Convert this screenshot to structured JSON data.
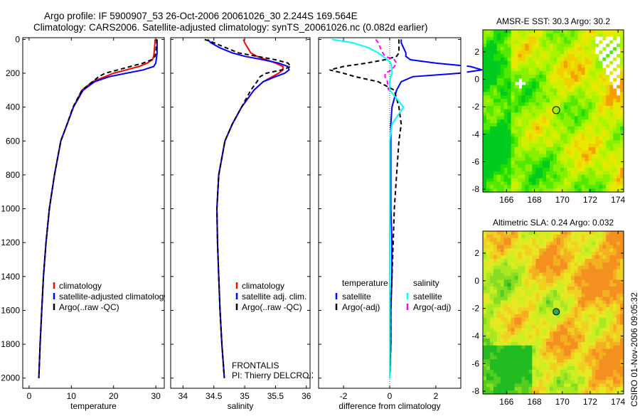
{
  "header": {
    "title_line1": "Argo profile: IF 5900907_53 26-Oct-2006 20061026_30 2.244S 169.564E",
    "title_line2": "Climatology: CARS2006. Satellite-adjusted climatology: synTS_20061026.nc (0.082d earlier)",
    "footer_stamp": "CSIRO 01-Nov-2006 09:05:32"
  },
  "colors": {
    "climatology": "#ff0000",
    "satellite": "#0000ff",
    "argo": "#000000",
    "sal_satellite": "#00ffff",
    "sal_argo": "#ff00ff"
  },
  "chart_data": [
    {
      "type": "line",
      "xlabel": "temperature",
      "xlim": [
        -1.5,
        32
      ],
      "ylim": [
        2060,
        -10
      ],
      "xticks": [
        0,
        10,
        20,
        30
      ],
      "yticks": [
        0,
        200,
        400,
        600,
        800,
        1000,
        1200,
        1400,
        1600,
        1800,
        2000
      ],
      "depth": [
        0,
        20,
        50,
        80,
        100,
        120,
        140,
        160,
        180,
        200,
        220,
        250,
        300,
        400,
        500,
        600,
        800,
        1000,
        1200,
        1400,
        1600,
        1800,
        2000
      ],
      "series": [
        {
          "name": "climatology",
          "color": "#ff0000",
          "dash": false,
          "values": [
            29.8,
            29.8,
            29.7,
            29.6,
            29.5,
            29.2,
            28,
            26,
            23,
            20,
            18,
            15,
            12.5,
            10.5,
            9,
            7.5,
            6,
            4.8,
            4,
            3.4,
            3,
            2.6,
            2.3
          ]
        },
        {
          "name": "satellite-adjusted climatology",
          "color": "#0000ff",
          "dash": false,
          "values": [
            30.3,
            30.3,
            30.3,
            30.3,
            30.2,
            30.1,
            30,
            29.5,
            27,
            23,
            19,
            15.5,
            12.8,
            10.5,
            9,
            7.5,
            6,
            4.8,
            4,
            3.4,
            3,
            2.6,
            2.3
          ]
        },
        {
          "name": "Argo(..raw -QC)",
          "color": "#000000",
          "dash": true,
          "values": [
            30.2,
            30.2,
            30.1,
            30,
            29.8,
            29,
            27,
            24,
            21,
            18,
            16.5,
            15,
            12.5,
            10.4,
            9,
            7.5,
            6,
            4.8,
            4,
            3.4,
            3,
            2.6,
            2.3
          ]
        }
      ],
      "legend": [
        "climatology",
        "satellite-adjusted climatology",
        "Argo(..raw -QC)"
      ]
    },
    {
      "type": "line",
      "xlabel": "salinity",
      "xlim": [
        33.8,
        36.06
      ],
      "ylim": [
        2060,
        -10
      ],
      "xticks": [
        34,
        34.5,
        35,
        35.5,
        36
      ],
      "yticks": [],
      "depth": [
        0,
        20,
        50,
        80,
        100,
        120,
        140,
        160,
        180,
        200,
        220,
        250,
        300,
        400,
        500,
        600,
        800,
        1000,
        1200,
        1400,
        1600,
        1800,
        2000
      ],
      "series": [
        {
          "name": "climatology",
          "color": "#ff0000",
          "dash": false,
          "values": [
            34.98,
            35.0,
            35.05,
            35.1,
            35.2,
            35.35,
            35.5,
            35.62,
            35.62,
            35.55,
            35.45,
            35.3,
            35.15,
            34.95,
            34.8,
            34.68,
            34.58,
            34.55,
            34.56,
            34.58,
            34.6,
            34.63,
            34.67
          ]
        },
        {
          "name": "satellite adj. clim.",
          "color": "#0000ff",
          "dash": false,
          "values": [
            34.4,
            34.45,
            34.6,
            34.8,
            35.0,
            35.3,
            35.55,
            35.7,
            35.72,
            35.65,
            35.5,
            35.3,
            35.15,
            34.95,
            34.8,
            34.68,
            34.58,
            34.55,
            34.56,
            34.58,
            34.6,
            34.63,
            34.67
          ]
        },
        {
          "name": "Argo(..raw -QC)",
          "color": "#000000",
          "dash": true,
          "values": [
            34.35,
            34.5,
            34.7,
            34.9,
            35.2,
            35.5,
            35.7,
            35.75,
            35.6,
            35.35,
            35.25,
            35.2,
            35.1,
            34.95,
            34.8,
            34.68,
            34.58,
            34.55,
            34.56,
            34.58,
            34.6,
            34.63,
            34.67
          ]
        }
      ],
      "legend": [
        "climatology",
        "satellite adj. clim.",
        "Argo(..raw -QC)"
      ],
      "annotations": [
        "FRONTALIS",
        "PI: Thierry DELCROIX"
      ]
    },
    {
      "type": "line",
      "xlabel": "difference from climatology",
      "xlim": [
        -3.08,
        3.08
      ],
      "ylim": [
        2060,
        -10
      ],
      "xticks": [
        -2,
        0,
        2
      ],
      "yticks": [],
      "depth": [
        0,
        20,
        50,
        80,
        100,
        120,
        140,
        160,
        180,
        200,
        220,
        250,
        300,
        400,
        500,
        600,
        800,
        1000,
        1200,
        1400,
        1600,
        1800,
        2000
      ],
      "series": [
        {
          "name": "temperature satellite",
          "color": "#0000ff",
          "dash": false,
          "values": [
            0.5,
            0.5,
            0.6,
            0.7,
            0.7,
            0.9,
            2,
            3.5,
            4,
            3,
            1,
            0.5,
            0.3,
            0.1,
            0.05,
            0.05,
            0.05,
            0.05,
            0.1,
            0.1,
            0.05,
            0.05,
            0
          ]
        },
        {
          "name": "temperature Argo(-adj)",
          "color": "#000000",
          "dash": true,
          "values": [
            0.4,
            0.4,
            0.4,
            0.4,
            0.3,
            -0.2,
            -1,
            -2,
            -2.6,
            -2,
            -1.5,
            -0.5,
            0.2,
            0.4,
            0.5,
            0.4,
            0.3,
            0.2,
            0.15,
            0.1,
            0.05,
            0.05,
            0
          ]
        },
        {
          "name": "salinity satellite",
          "color": "#00ffff",
          "dash": false,
          "values": [
            -2.5,
            -1.6,
            -0.9,
            -0.5,
            -0.3,
            -0.1,
            0.05,
            0.08,
            0.1,
            0.1,
            0.05,
            0,
            0,
            0.6,
            0.1,
            0,
            0,
            0,
            0,
            0,
            0,
            0,
            0
          ]
        },
        {
          "name": "salinity Argo(-adj)",
          "color": "#ff00ff",
          "dash": true,
          "values": [
            -0.6,
            -0.5,
            -0.4,
            -0.3,
            -0.2,
            0.2,
            0.3,
            0.2,
            0.1,
            -0.2,
            -0.2,
            -0.1,
            -0.05,
            null,
            null,
            null,
            null,
            null,
            null,
            null,
            null,
            null,
            null
          ]
        }
      ],
      "legend_headers": [
        "temperature",
        "salinity"
      ],
      "legend": [
        "satellite",
        "Argo(-adj)",
        "satellite",
        "Argo(-adj)"
      ]
    },
    {
      "type": "heatmap",
      "title": "AMSR-E SST: 30.3 Argo: 30.2",
      "xlim": [
        164.3,
        174.4
      ],
      "ylim": [
        -8.2,
        3.6
      ],
      "xticks": [
        166,
        168,
        170,
        172,
        174
      ],
      "yticks": [
        2,
        0,
        -2,
        -4,
        -6,
        -8
      ],
      "argo_position": {
        "lon": 169.564,
        "lat": -2.244
      }
    },
    {
      "type": "heatmap",
      "title": "Altimetric SLA: 0.24 Argo: 0.032",
      "xlim": [
        164.3,
        174.4
      ],
      "ylim": [
        -8.2,
        3.6
      ],
      "xticks": [
        166,
        168,
        170,
        172,
        174
      ],
      "yticks": [
        2,
        0,
        -2,
        -4,
        -6,
        -8
      ],
      "argo_position": {
        "lon": 169.564,
        "lat": -2.244
      }
    }
  ]
}
